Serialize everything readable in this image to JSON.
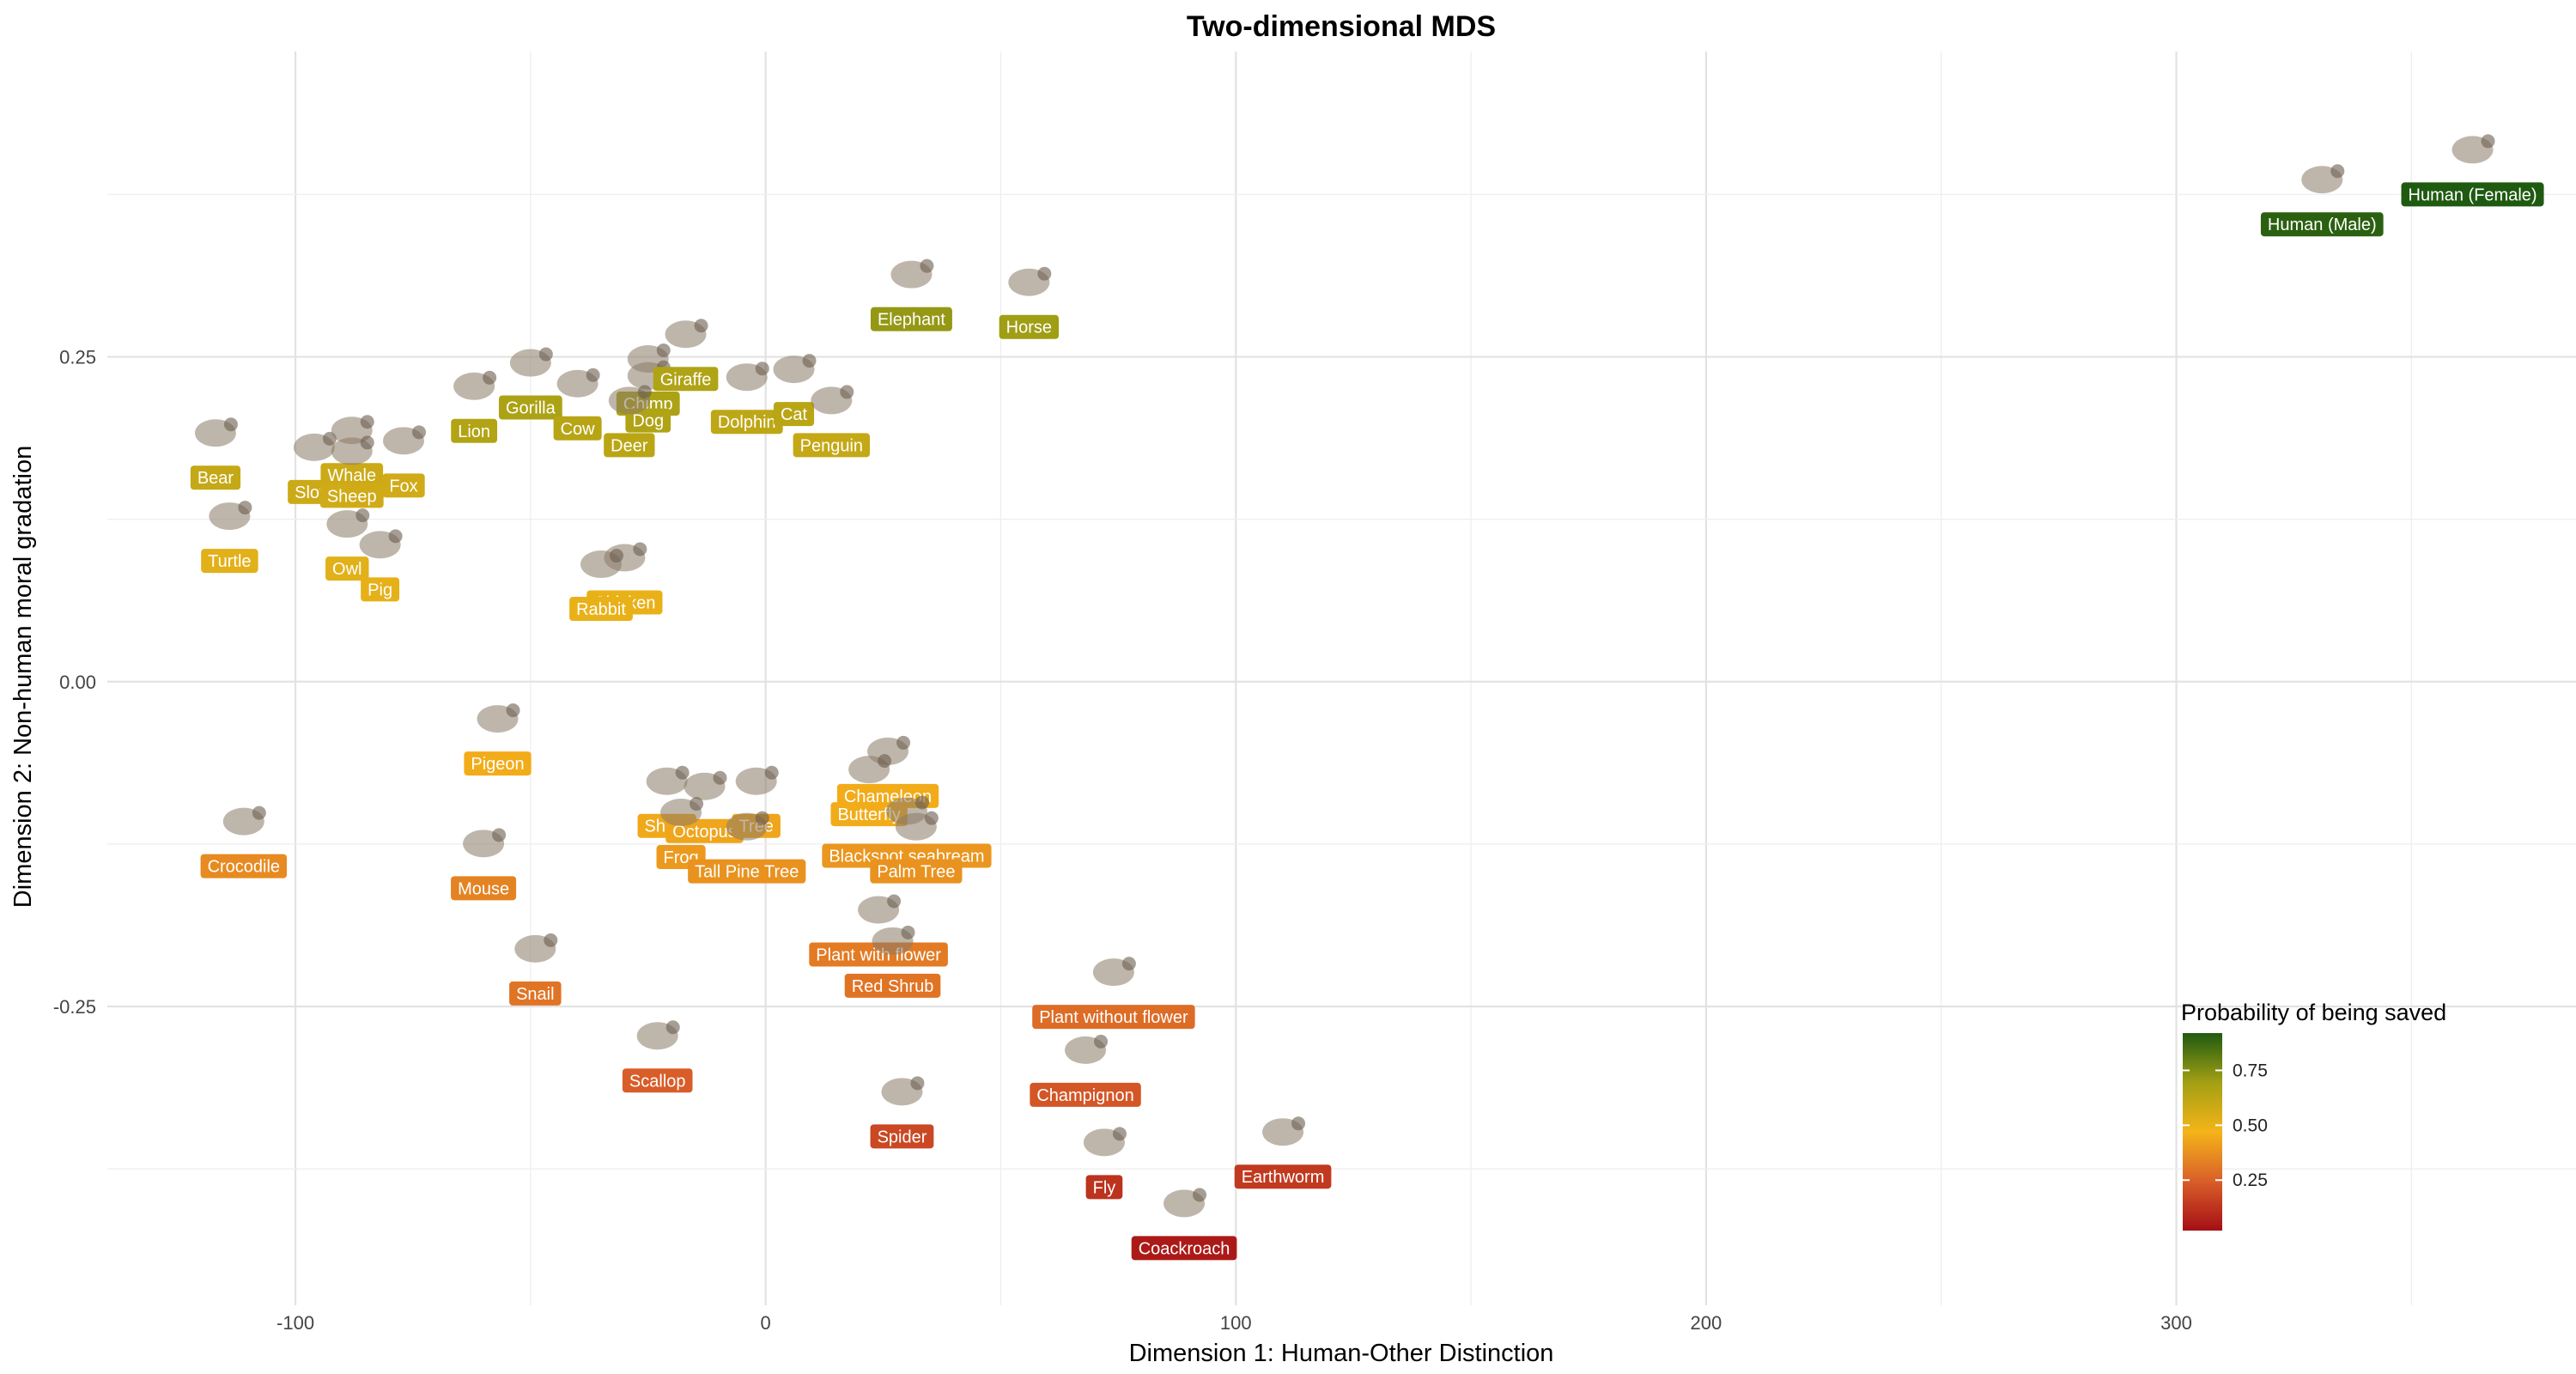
{
  "chart_data": {
    "type": "scatter",
    "title": "Two-dimensional MDS",
    "xlabel": "Dimension 1: Human-Other Distinction",
    "ylabel": "Dimension 2: Non-human moral gradation",
    "xlim": [
      -140,
      385
    ],
    "ylim": [
      -0.48,
      0.485
    ],
    "x_ticks": [
      {
        "value": -100,
        "label": "-100"
      },
      {
        "value": 0,
        "label": "0"
      },
      {
        "value": 100,
        "label": "100"
      },
      {
        "value": 200,
        "label": "200"
      },
      {
        "value": 300,
        "label": "300"
      }
    ],
    "y_ticks": [
      {
        "value": -0.25,
        "label": "-0.25"
      },
      {
        "value": 0,
        "label": "0.00"
      },
      {
        "value": 0.25,
        "label": "0.25"
      }
    ],
    "grid": true,
    "legend": {
      "title": "Probability of being saved",
      "placement": "bottom-right",
      "colors": [
        "#a50f15",
        "#d95f29",
        "#f4b419",
        "#a3a014",
        "#1f5a11"
      ],
      "range": [
        0.02,
        0.92
      ],
      "ticks": [
        {
          "value": 0.25,
          "label": "0.25"
        },
        {
          "value": 0.5,
          "label": "0.50"
        },
        {
          "value": 0.75,
          "label": "0.75"
        }
      ]
    },
    "points": [
      {
        "name": "Human (Female)",
        "x": 363,
        "y": 0.375,
        "p": 0.92,
        "icon": "human-female-icon"
      },
      {
        "name": "Human (Male)",
        "x": 331,
        "y": 0.352,
        "p": 0.9,
        "icon": "human-male-icon"
      },
      {
        "name": "Elephant",
        "x": 31,
        "y": 0.279,
        "p": 0.72,
        "icon": "elephant-icon"
      },
      {
        "name": "Horse",
        "x": 56,
        "y": 0.273,
        "p": 0.7,
        "icon": "horse-icon"
      },
      {
        "name": "Bear",
        "x": -117,
        "y": 0.157,
        "p": 0.6,
        "icon": "bear-icon"
      },
      {
        "name": "Lion",
        "x": -62,
        "y": 0.193,
        "p": 0.65,
        "icon": "lion-icon"
      },
      {
        "name": "Gorilla",
        "x": -50,
        "y": 0.211,
        "p": 0.67,
        "icon": "gorilla-icon"
      },
      {
        "name": "Cow",
        "x": -40,
        "y": 0.195,
        "p": 0.64,
        "icon": "cow-icon"
      },
      {
        "name": "Chimp",
        "x": -25,
        "y": 0.214,
        "p": 0.67,
        "icon": "chimp-icon"
      },
      {
        "name": "Dog",
        "x": -25,
        "y": 0.201,
        "p": 0.66,
        "icon": "dog-icon"
      },
      {
        "name": "Deer",
        "x": -29,
        "y": 0.182,
        "p": 0.63,
        "icon": "deer-icon"
      },
      {
        "name": "Giraffe",
        "x": -17,
        "y": 0.233,
        "p": 0.66,
        "icon": "giraffe-icon"
      },
      {
        "name": "Dolphin",
        "x": -4,
        "y": 0.2,
        "p": 0.62,
        "icon": "dolphin-icon"
      },
      {
        "name": "Cat",
        "x": 6,
        "y": 0.206,
        "p": 0.63,
        "icon": "cat-icon"
      },
      {
        "name": "Penguin",
        "x": 14,
        "y": 0.182,
        "p": 0.6,
        "icon": "penguin-icon"
      },
      {
        "name": "Sloth",
        "x": -96,
        "y": 0.146,
        "p": 0.58,
        "icon": "sloth-icon"
      },
      {
        "name": "Whale",
        "x": -88,
        "y": 0.159,
        "p": 0.58,
        "icon": "whale-icon"
      },
      {
        "name": "Sheep",
        "x": -88,
        "y": 0.143,
        "p": 0.57,
        "icon": "sheep-icon"
      },
      {
        "name": "Fox",
        "x": -77,
        "y": 0.151,
        "p": 0.57,
        "icon": "fox-icon"
      },
      {
        "name": "Turtle",
        "x": -114,
        "y": 0.093,
        "p": 0.52,
        "icon": "turtle-icon"
      },
      {
        "name": "Owl",
        "x": -89,
        "y": 0.087,
        "p": 0.52,
        "icon": "owl-icon"
      },
      {
        "name": "Pig",
        "x": -82,
        "y": 0.071,
        "p": 0.51,
        "icon": "pig-icon"
      },
      {
        "name": "Chicken",
        "x": -30,
        "y": 0.061,
        "p": 0.5,
        "icon": "chicken-icon"
      },
      {
        "name": "Rabbit",
        "x": -35,
        "y": 0.056,
        "p": 0.5,
        "icon": "rabbit-icon"
      },
      {
        "name": "Pigeon",
        "x": -57,
        "y": -0.063,
        "p": 0.45,
        "icon": "pigeon-icon"
      },
      {
        "name": "Crocodile",
        "x": -111,
        "y": -0.142,
        "p": 0.36,
        "icon": "crocodile-icon"
      },
      {
        "name": "Mouse",
        "x": -60,
        "y": -0.159,
        "p": 0.34,
        "icon": "mouse-icon"
      },
      {
        "name": "Shark",
        "x": -21,
        "y": -0.111,
        "p": 0.44,
        "icon": "shark-icon"
      },
      {
        "name": "Octopus",
        "x": -13,
        "y": -0.115,
        "p": 0.43,
        "icon": "octopus-icon"
      },
      {
        "name": "Tree",
        "x": -2,
        "y": -0.111,
        "p": 0.43,
        "icon": "tree-icon"
      },
      {
        "name": "Frog",
        "x": -18,
        "y": -0.135,
        "p": 0.4,
        "icon": "frog-icon"
      },
      {
        "name": "Tall Pine Tree",
        "x": -4,
        "y": -0.146,
        "p": 0.38,
        "icon": "pine-tree-icon"
      },
      {
        "name": "Chameleon",
        "x": 26,
        "y": -0.088,
        "p": 0.45,
        "icon": "chameleon-icon"
      },
      {
        "name": "Butterfly",
        "x": 22,
        "y": -0.102,
        "p": 0.45,
        "icon": "butterfly-icon"
      },
      {
        "name": "Blackspot seabream",
        "x": 30,
        "y": -0.134,
        "p": 0.39,
        "icon": "seabream-icon"
      },
      {
        "name": "Palm Tree",
        "x": 32,
        "y": -0.146,
        "p": 0.38,
        "icon": "palm-tree-icon"
      },
      {
        "name": "Plant with flower",
        "x": 24,
        "y": -0.21,
        "p": 0.32,
        "icon": "flower-plant-icon"
      },
      {
        "name": "Red Shrub",
        "x": 27,
        "y": -0.234,
        "p": 0.3,
        "icon": "shrub-icon"
      },
      {
        "name": "Snail",
        "x": -49,
        "y": -0.24,
        "p": 0.3,
        "icon": "snail-icon"
      },
      {
        "name": "Plant without flower",
        "x": 74,
        "y": -0.258,
        "p": 0.28,
        "icon": "grass-icon"
      },
      {
        "name": "Scallop",
        "x": -23,
        "y": -0.307,
        "p": 0.24,
        "icon": "scallop-icon"
      },
      {
        "name": "Champignon",
        "x": 68,
        "y": -0.318,
        "p": 0.22,
        "icon": "mushroom-icon"
      },
      {
        "name": "Spider",
        "x": 29,
        "y": -0.35,
        "p": 0.18,
        "icon": "spider-icon"
      },
      {
        "name": "Fly",
        "x": 72,
        "y": -0.389,
        "p": 0.12,
        "icon": "fly-icon"
      },
      {
        "name": "Earthworm",
        "x": 110,
        "y": -0.381,
        "p": 0.14,
        "icon": "earthworm-icon"
      },
      {
        "name": "Coackroach",
        "x": 89,
        "y": -0.436,
        "p": 0.05,
        "icon": "cockroach-icon"
      }
    ]
  }
}
